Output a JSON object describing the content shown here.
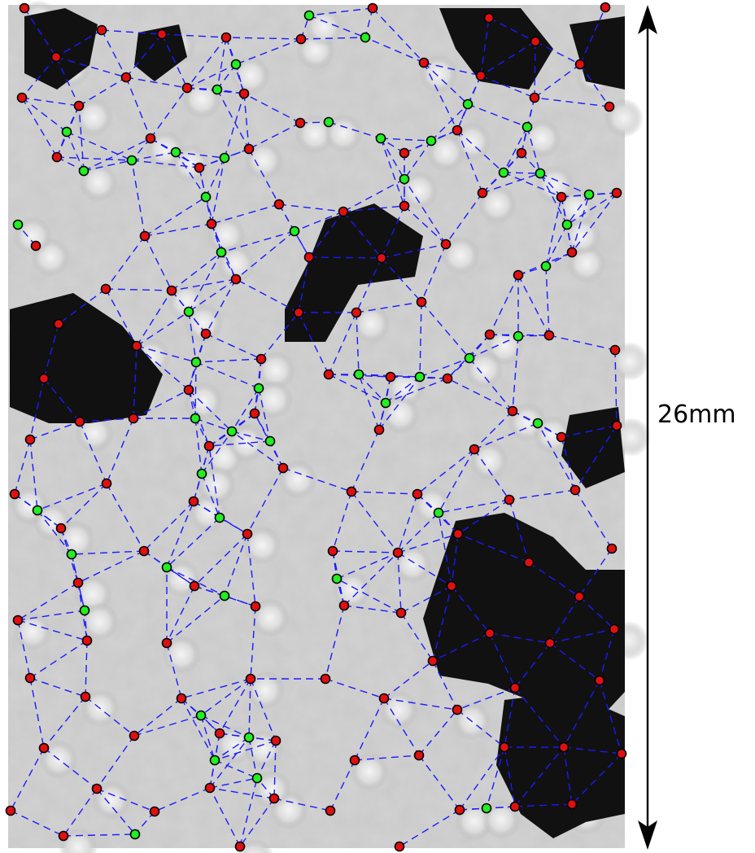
{
  "scale_bar": {
    "label": "26mm"
  },
  "colors": {
    "background_photo": "#c9c9c9",
    "cluster_dark": "#111111",
    "edge": "#1a1aff",
    "node_primary": "#e01010",
    "node_secondary": "#22ee22",
    "arrow": "#000000"
  }
}
